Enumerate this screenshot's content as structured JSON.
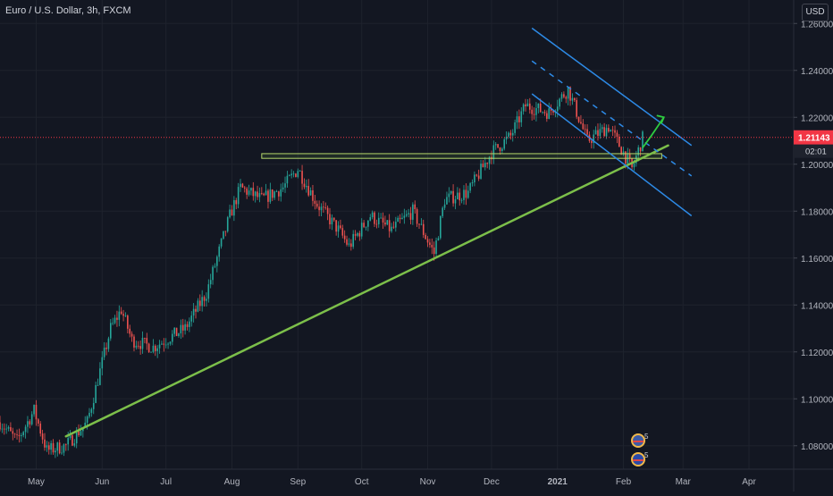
{
  "header": {
    "title": "Euro / U.S. Dollar, 3h, FXCM",
    "currency": "USD"
  },
  "price_tag": {
    "value": "1.21143",
    "countdown": "02:01"
  },
  "colors": {
    "background": "#131722",
    "grid": "#1e222d",
    "up": "#26a69a",
    "down": "#ef5350",
    "trend": "#7cbf4a",
    "channel": "#2d8ae6",
    "arrow": "#2ecc40",
    "price_line": "#f23645",
    "axis_text": "#b2b5be"
  },
  "icons": {
    "events": [
      "us-flag-event-icon",
      "eu-flag-event-icon"
    ],
    "event_badges": [
      "5",
      "5"
    ]
  },
  "chart_data": {
    "type": "candlestick",
    "title": "Euro / U.S. Dollar, 3h, FXCM",
    "ylim": [
      1.07,
      1.27
    ],
    "y_ticks": [
      "1.26000",
      "1.24000",
      "1.22000",
      "1.20000",
      "1.18000",
      "1.16000",
      "1.14000",
      "1.12000",
      "1.10000",
      "1.08000"
    ],
    "x_ticks": [
      "May",
      "Jun",
      "Jul",
      "Aug",
      "Sep",
      "Oct",
      "Nov",
      "Dec",
      "2021",
      "Feb",
      "Mar",
      "Apr"
    ],
    "x_tick_dates": [
      "2020-05-01",
      "2020-06-01",
      "2020-07-01",
      "2020-08-01",
      "2020-09-01",
      "2020-10-01",
      "2020-11-01",
      "2020-12-01",
      "2021-01-01",
      "2021-02-01",
      "2021-03-01",
      "2021-04-01"
    ],
    "xlim": [
      "2020-04-14",
      "2021-04-22"
    ],
    "price_series": [
      [
        "2020-04-14",
        1.09
      ],
      [
        "2020-04-22",
        1.082
      ],
      [
        "2020-04-30",
        1.095
      ],
      [
        "2020-05-06",
        1.078
      ],
      [
        "2020-05-15",
        1.08
      ],
      [
        "2020-05-25",
        1.09
      ],
      [
        "2020-06-05",
        1.13
      ],
      [
        "2020-06-10",
        1.138
      ],
      [
        "2020-06-15",
        1.125
      ],
      [
        "2020-06-25",
        1.122
      ],
      [
        "2020-07-10",
        1.13
      ],
      [
        "2020-07-20",
        1.145
      ],
      [
        "2020-07-31",
        1.178
      ],
      [
        "2020-08-05",
        1.19
      ],
      [
        "2020-08-15",
        1.185
      ],
      [
        "2020-08-25",
        1.19
      ],
      [
        "2020-09-01",
        1.198
      ],
      [
        "2020-09-10",
        1.183
      ],
      [
        "2020-09-20",
        1.172
      ],
      [
        "2020-09-25",
        1.165
      ],
      [
        "2020-10-05",
        1.178
      ],
      [
        "2020-10-15",
        1.172
      ],
      [
        "2020-10-25",
        1.18
      ],
      [
        "2020-11-04",
        1.162
      ],
      [
        "2020-11-09",
        1.185
      ],
      [
        "2020-11-20",
        1.188
      ],
      [
        "2020-12-01",
        1.205
      ],
      [
        "2020-12-10",
        1.212
      ],
      [
        "2020-12-17",
        1.225
      ],
      [
        "2020-12-28",
        1.222
      ],
      [
        "2021-01-06",
        1.232
      ],
      [
        "2021-01-15",
        1.21
      ],
      [
        "2021-01-25",
        1.216
      ],
      [
        "2021-02-01",
        1.205
      ],
      [
        "2021-02-05",
        1.198
      ],
      [
        "2021-02-10",
        1.211
      ]
    ],
    "trendline": {
      "start": [
        "2020-05-15",
        1.084
      ],
      "end": [
        "2021-02-22",
        1.208
      ]
    },
    "support_zone": {
      "x": [
        "2020-08-15",
        "2021-02-19"
      ],
      "y": [
        1.2025,
        1.2045
      ]
    },
    "channel_upper": {
      "start": [
        "2020-12-20",
        1.258
      ],
      "end": [
        "2021-03-05",
        1.208
      ]
    },
    "channel_mid": {
      "start": [
        "2020-12-20",
        1.244
      ],
      "end": [
        "2021-03-05",
        1.195
      ]
    },
    "channel_lower": {
      "start": [
        "2020-12-20",
        1.23
      ],
      "end": [
        "2021-03-05",
        1.178
      ]
    },
    "forecast_arrow": [
      [
        "2021-02-10",
        1.207
      ],
      [
        "2021-02-14",
        1.212
      ],
      [
        "2021-02-20",
        1.22
      ]
    ],
    "current_price": 1.21143
  }
}
